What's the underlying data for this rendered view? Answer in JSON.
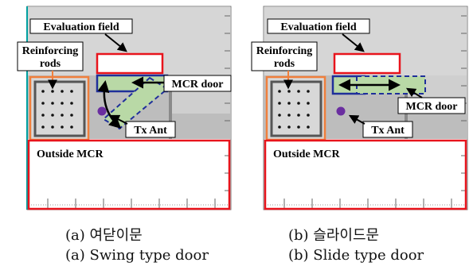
{
  "panels": [
    {
      "id": "a",
      "labels": {
        "evaluation_field": "Evaluation field",
        "reinforcing_rods_line1": "Reinforcing",
        "reinforcing_rods_line2": "rods",
        "mcr_door": "MCR door",
        "tx_ant": "Tx Ant",
        "outside_mcr": "Outside MCR"
      },
      "caption_korean": "(a)  여닫이문",
      "caption_english": "(a)  Swing  type  door"
    },
    {
      "id": "b",
      "labels": {
        "evaluation_field": "Evaluation field",
        "reinforcing_rods_line1": "Reinforcing",
        "reinforcing_rods_line2": "rods",
        "mcr_door": "MCR door",
        "tx_ant": "Tx Ant",
        "outside_mcr": "Outside MCR"
      },
      "caption_korean": "(b)  슬라이드문",
      "caption_english": "(b)  Slide  type  door"
    }
  ],
  "colors": {
    "red_box": "#e8141c",
    "orange_box": "#f07f3c",
    "blue_door": "#1f2f9a",
    "door_fill": "#b9d9a6",
    "antenna": "#6a2ea0",
    "room_gray": "#bdbdbd",
    "wall_gray": "#cfcfcf"
  }
}
